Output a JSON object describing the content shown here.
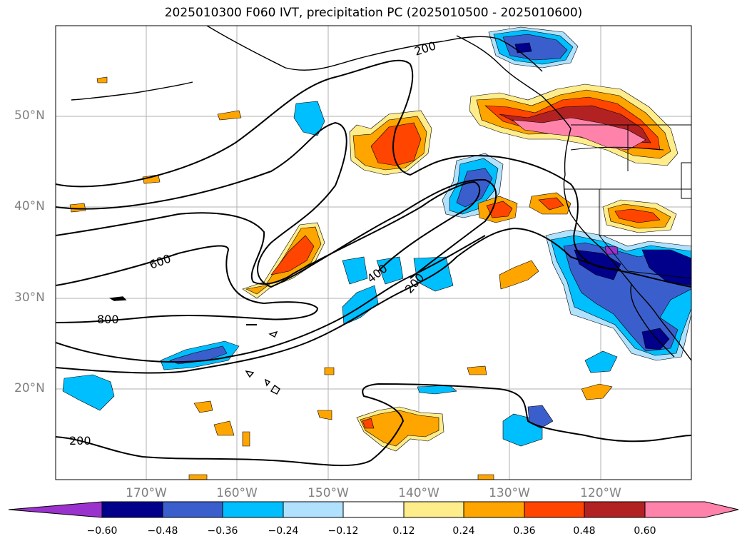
{
  "title": "2025010300 F060 IVT, precipitation PC (2025010500 - 2025010600)",
  "map": {
    "projection": "PlateCarree",
    "lon_range": [
      -180,
      -110
    ],
    "lat_range": [
      10,
      60
    ],
    "gridlines": true,
    "lat_labels": [
      {
        "lat": 50,
        "label": "50°N"
      },
      {
        "lat": 40,
        "label": "40°N"
      },
      {
        "lat": 30,
        "label": "30°N"
      },
      {
        "lat": 20,
        "label": "20°N"
      }
    ],
    "lon_labels": [
      {
        "lon": -170,
        "label": "170°W"
      },
      {
        "lon": -160,
        "label": "160°W"
      },
      {
        "lon": -150,
        "label": "150°W"
      },
      {
        "lon": -140,
        "label": "140°W"
      },
      {
        "lon": -130,
        "label": "130°W"
      },
      {
        "lon": -120,
        "label": "120°W"
      }
    ]
  },
  "contour_labels": [
    {
      "text": "200",
      "lon": -139.5,
      "lat": 57.8
    },
    {
      "text": "600",
      "lon": -162,
      "lat": 33.8
    },
    {
      "text": "800",
      "lon": -174,
      "lat": 27.7
    },
    {
      "text": "400",
      "lon": -143.5,
      "lat": 32
    },
    {
      "text": "200",
      "lon": -140,
      "lat": 31.5
    },
    {
      "text": "200",
      "lon": -177,
      "lat": 12.2
    }
  ],
  "colorbar": {
    "colors": [
      "#9a32cd",
      "#00008b",
      "#3a5fcd",
      "#00bfff",
      "#b0e2ff",
      "#ffffff",
      "#ffec8b",
      "#ffa500",
      "#ff4500",
      "#b22222",
      "#ff82ab"
    ],
    "tick_labels": [
      "−0.60",
      "−0.48",
      "−0.36",
      "−0.24",
      "−0.12",
      "0.12",
      "0.24",
      "0.36",
      "0.48",
      "0.60"
    ],
    "extend": "both"
  }
}
